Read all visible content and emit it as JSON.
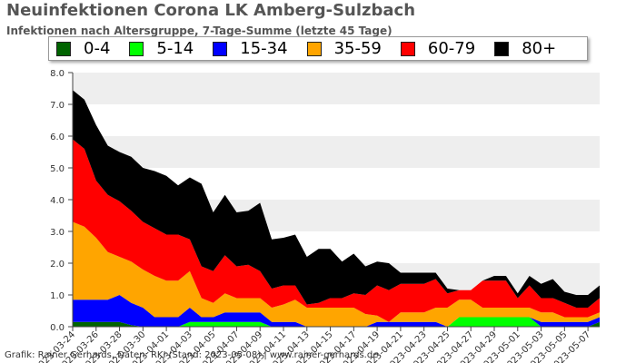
{
  "header": {
    "title": "Neuinfektionen Corona LK Amberg-Sulzbach",
    "subtitle": "Infektionen nach Altersgruppe, 7-Tage-Summe (letzte 45 Tage)"
  },
  "credit": "Grafik: Rainer Gerhards, Daten: RKI (Stand: 2023-05-08) | www.rainer-gerhards.de",
  "legend": [
    {
      "label": "0-4",
      "color": "#006400"
    },
    {
      "label": "5-14",
      "color": "#00ff00"
    },
    {
      "label": "15-34",
      "color": "#0000ff"
    },
    {
      "label": "35-59",
      "color": "#ffa500"
    },
    {
      "label": "60-79",
      "color": "#ff0000"
    },
    {
      "label": "80+",
      "color": "#000000"
    }
  ],
  "chart_data": {
    "type": "area",
    "stacked": true,
    "title": "Neuinfektionen Corona LK Amberg-Sulzbach",
    "subtitle": "Infektionen nach Altersgruppe, 7-Tage-Summe (letzte 45 Tage)",
    "ylim": [
      0,
      8
    ],
    "yticks": [
      "0.0",
      "1.0",
      "2.0",
      "3.0",
      "4.0",
      "5.0",
      "6.0",
      "7.0",
      "8.0"
    ],
    "grid": "horizontal-bands",
    "legend_position": "top",
    "x": [
      "2023-03-24",
      "2023-03-25",
      "2023-03-26",
      "2023-03-27",
      "2023-03-28",
      "2023-03-29",
      "2023-03-30",
      "2023-03-31",
      "2023-04-01",
      "2023-04-02",
      "2023-04-03",
      "2023-04-04",
      "2023-04-05",
      "2023-04-06",
      "2023-04-07",
      "2023-04-08",
      "2023-04-09",
      "2023-04-10",
      "2023-04-11",
      "2023-04-12",
      "2023-04-13",
      "2023-04-14",
      "2023-04-15",
      "2023-04-16",
      "2023-04-17",
      "2023-04-18",
      "2023-04-19",
      "2023-04-20",
      "2023-04-21",
      "2023-04-22",
      "2023-04-23",
      "2023-04-24",
      "2023-04-25",
      "2023-04-26",
      "2023-04-27",
      "2023-04-28",
      "2023-04-29",
      "2023-04-30",
      "2023-05-01",
      "2023-05-02",
      "2023-05-03",
      "2023-05-04",
      "2023-05-05",
      "2023-05-06",
      "2023-05-07",
      "2023-05-08"
    ],
    "xticks": [
      "2023-03-24",
      "2023-03-26",
      "2023-03-28",
      "2023-03-30",
      "2023-04-01",
      "2023-04-03",
      "2023-04-05",
      "2023-04-07",
      "2023-04-09",
      "2023-04-11",
      "2023-04-13",
      "2023-04-15",
      "2023-04-17",
      "2023-04-19",
      "2023-04-21",
      "2023-04-23",
      "2023-04-25",
      "2023-04-27",
      "2023-04-29",
      "2023-05-01",
      "2023-05-03",
      "2023-05-05",
      "2023-05-07"
    ],
    "series": [
      {
        "name": "0-4",
        "color": "#006400",
        "values": [
          0.15,
          0.15,
          0.15,
          0.15,
          0.15,
          0.05,
          0,
          0,
          0,
          0,
          0,
          0,
          0,
          0,
          0,
          0,
          0,
          0,
          0,
          0,
          0,
          0,
          0,
          0,
          0,
          0,
          0,
          0,
          0,
          0,
          0,
          0,
          0,
          0,
          0,
          0,
          0,
          0,
          0,
          0,
          0,
          0,
          0,
          0,
          0,
          0.15
        ]
      },
      {
        "name": "5-14",
        "color": "#00ff00",
        "values": [
          0,
          0,
          0,
          0,
          0,
          0,
          0,
          0,
          0,
          0,
          0.15,
          0.15,
          0.15,
          0.15,
          0.15,
          0.15,
          0.15,
          0,
          0,
          0,
          0,
          0,
          0,
          0,
          0,
          0,
          0,
          0,
          0,
          0,
          0,
          0,
          0,
          0.3,
          0.3,
          0.3,
          0.3,
          0.3,
          0.3,
          0.3,
          0,
          0,
          0,
          0,
          0,
          0
        ]
      },
      {
        "name": "15-34",
        "color": "#0000ff",
        "values": [
          0.7,
          0.7,
          0.7,
          0.7,
          0.85,
          0.7,
          0.6,
          0.3,
          0.3,
          0.3,
          0.45,
          0.15,
          0.15,
          0.3,
          0.3,
          0.3,
          0.3,
          0.15,
          0.15,
          0.15,
          0,
          0,
          0,
          0,
          0,
          0,
          0.15,
          0.15,
          0.15,
          0.15,
          0.15,
          0.15,
          0,
          0,
          0,
          0,
          0,
          0,
          0,
          0,
          0.15,
          0.15,
          0.15,
          0.15,
          0.15,
          0.15
        ]
      },
      {
        "name": "35-59",
        "color": "#ffa500",
        "values": [
          2.45,
          2.3,
          1.95,
          1.5,
          1.2,
          1.3,
          1.2,
          1.3,
          1.15,
          1.15,
          1.15,
          0.6,
          0.45,
          0.6,
          0.45,
          0.45,
          0.45,
          0.45,
          0.55,
          0.7,
          0.6,
          0.6,
          0.6,
          0.6,
          0.6,
          0.4,
          0.2,
          0,
          0.3,
          0.3,
          0.3,
          0.45,
          0.6,
          0.55,
          0.55,
          0.3,
          0.3,
          0.3,
          0.3,
          0.3,
          0.3,
          0.3,
          0.15,
          0.15,
          0.15,
          0.15
        ]
      },
      {
        "name": "60-79",
        "color": "#ff0000",
        "values": [
          2.6,
          2.45,
          1.8,
          1.8,
          1.75,
          1.6,
          1.5,
          1.5,
          1.45,
          1.45,
          1,
          1,
          1,
          1.2,
          1,
          1.05,
          0.85,
          0.6,
          0.6,
          0.45,
          0.1,
          0.15,
          0.3,
          0.3,
          0.45,
          0.6,
          0.95,
          1,
          0.9,
          0.9,
          0.9,
          0.9,
          0.45,
          0.3,
          0.3,
          0.85,
          0.85,
          0.85,
          0.3,
          0.7,
          0.45,
          0.45,
          0.45,
          0.3,
          0.3,
          0.45
        ]
      },
      {
        "name": "80+",
        "color": "#000000",
        "values": [
          1.55,
          1.55,
          1.75,
          1.55,
          1.55,
          1.7,
          1.7,
          1.8,
          1.85,
          1.55,
          1.95,
          2.6,
          1.85,
          1.9,
          1.7,
          1.7,
          2.15,
          1.55,
          1.5,
          1.6,
          1.5,
          1.7,
          1.55,
          1.15,
          1.25,
          0.9,
          0.75,
          0.85,
          0.35,
          0.35,
          0.35,
          0.2,
          0.15,
          0,
          0,
          0,
          0.15,
          0.15,
          0.15,
          0.3,
          0.45,
          0.6,
          0.35,
          0.4,
          0.4,
          0.4
        ]
      }
    ]
  }
}
